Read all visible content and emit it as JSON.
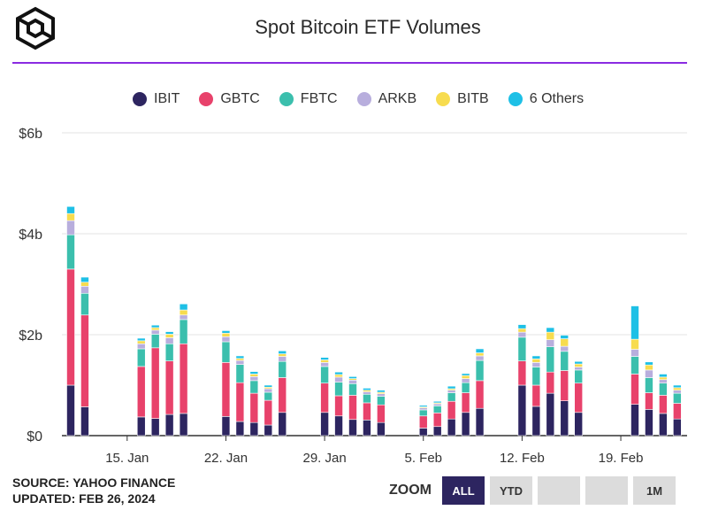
{
  "header": {
    "title": "Spot Bitcoin ETF Volumes",
    "logo_icon": "cube-logo-icon"
  },
  "colors": {
    "IBIT": "#2d2560",
    "GBTC": "#e8426b",
    "FBTC": "#3bbfad",
    "ARKB": "#b8aedd",
    "BITB": "#f7dc4f",
    "Others": "#1ec0e6",
    "accent": "#8a2be2"
  },
  "legend": [
    {
      "label": "IBIT",
      "color": "#2d2560"
    },
    {
      "label": "GBTC",
      "color": "#e8426b"
    },
    {
      "label": "FBTC",
      "color": "#3bbfad"
    },
    {
      "label": "ARKB",
      "color": "#b8aedd"
    },
    {
      "label": "BITB",
      "color": "#f7dc4f"
    },
    {
      "label": "6 Others",
      "color": "#1ec0e6"
    }
  ],
  "chart_data": {
    "type": "bar",
    "stacked": true,
    "title": "Spot Bitcoin ETF Volumes",
    "ylabel": "",
    "ylim": [
      0,
      6
    ],
    "y_ticks": [
      "$0",
      "$2b",
      "$4b",
      "$6b"
    ],
    "x_tick_labels": [
      "15. Jan",
      "22. Jan",
      "29. Jan",
      "5. Feb",
      "12. Feb",
      "19. Feb"
    ],
    "dates": [
      "2024-01-11",
      "2024-01-12",
      "2024-01-16",
      "2024-01-17",
      "2024-01-18",
      "2024-01-19",
      "2024-01-22",
      "2024-01-23",
      "2024-01-24",
      "2024-01-25",
      "2024-01-26",
      "2024-01-29",
      "2024-01-30",
      "2024-01-31",
      "2024-02-01",
      "2024-02-02",
      "2024-02-05",
      "2024-02-06",
      "2024-02-07",
      "2024-02-08",
      "2024-02-09",
      "2024-02-12",
      "2024-02-13",
      "2024-02-14",
      "2024-02-15",
      "2024-02-16",
      "2024-02-20",
      "2024-02-21",
      "2024-02-22",
      "2024-02-23"
    ],
    "series": [
      {
        "name": "IBIT",
        "values": [
          1.0,
          0.57,
          0.37,
          0.34,
          0.42,
          0.44,
          0.38,
          0.28,
          0.26,
          0.21,
          0.46,
          0.46,
          0.39,
          0.32,
          0.31,
          0.26,
          0.15,
          0.18,
          0.33,
          0.46,
          0.54,
          1.0,
          0.58,
          0.84,
          0.69,
          0.46,
          0.62,
          0.52,
          0.44,
          0.33
        ]
      },
      {
        "name": "GBTC",
        "values": [
          2.3,
          1.82,
          1.0,
          1.4,
          1.06,
          1.38,
          1.07,
          0.77,
          0.58,
          0.49,
          0.69,
          0.58,
          0.4,
          0.48,
          0.34,
          0.35,
          0.24,
          0.27,
          0.35,
          0.39,
          0.55,
          0.48,
          0.42,
          0.42,
          0.6,
          0.58,
          0.6,
          0.33,
          0.36,
          0.31
        ]
      },
      {
        "name": "FBTC",
        "values": [
          0.68,
          0.43,
          0.35,
          0.27,
          0.34,
          0.48,
          0.41,
          0.36,
          0.25,
          0.16,
          0.32,
          0.33,
          0.27,
          0.23,
          0.17,
          0.17,
          0.12,
          0.14,
          0.17,
          0.2,
          0.4,
          0.47,
          0.36,
          0.5,
          0.38,
          0.26,
          0.35,
          0.3,
          0.24,
          0.2
        ]
      },
      {
        "name": "ARKB",
        "values": [
          0.28,
          0.14,
          0.1,
          0.08,
          0.12,
          0.09,
          0.1,
          0.08,
          0.08,
          0.07,
          0.1,
          0.08,
          0.1,
          0.07,
          0.05,
          0.05,
          0.04,
          0.04,
          0.05,
          0.08,
          0.09,
          0.1,
          0.09,
          0.14,
          0.1,
          0.06,
          0.14,
          0.15,
          0.07,
          0.06
        ]
      },
      {
        "name": "BITB",
        "values": [
          0.14,
          0.08,
          0.06,
          0.05,
          0.07,
          0.1,
          0.07,
          0.04,
          0.05,
          0.03,
          0.05,
          0.05,
          0.05,
          0.03,
          0.03,
          0.03,
          0.02,
          0.02,
          0.03,
          0.06,
          0.06,
          0.07,
          0.07,
          0.15,
          0.15,
          0.06,
          0.2,
          0.1,
          0.05,
          0.05
        ]
      },
      {
        "name": "6 Others",
        "values": [
          0.14,
          0.1,
          0.05,
          0.05,
          0.05,
          0.12,
          0.05,
          0.05,
          0.05,
          0.04,
          0.06,
          0.05,
          0.05,
          0.04,
          0.04,
          0.04,
          0.03,
          0.03,
          0.05,
          0.04,
          0.08,
          0.08,
          0.06,
          0.09,
          0.07,
          0.05,
          0.66,
          0.06,
          0.06,
          0.05
        ]
      }
    ]
  },
  "footer": {
    "source": "SOURCE: YAHOO FINANCE",
    "updated": "UPDATED: FEB 26, 2024"
  },
  "zoom": {
    "label": "ZOOM",
    "buttons": [
      "ALL",
      "YTD",
      "",
      "",
      "1M"
    ],
    "active": "ALL"
  }
}
